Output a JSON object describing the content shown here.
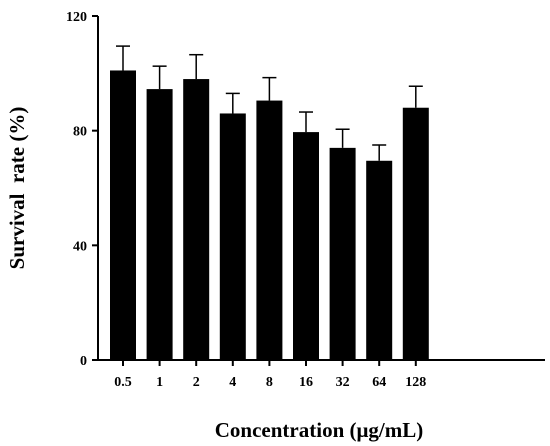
{
  "chart_data": {
    "type": "bar",
    "title": "",
    "xlabel": "Concentration (μg/mL)",
    "ylabel": "Survival  rate (%)",
    "categories": [
      "0.5",
      "1",
      "2",
      "4",
      "8",
      "16",
      "32",
      "64",
      "128"
    ],
    "values": [
      101,
      94.5,
      98,
      86,
      90.5,
      79.5,
      74,
      69.5,
      88
    ],
    "errors": [
      8.5,
      8,
      8.5,
      7,
      8,
      7,
      6.5,
      5.5,
      7.5
    ],
    "ylim": [
      0,
      120
    ],
    "yticks": [
      "0",
      "40",
      "80",
      "120"
    ],
    "grid": false,
    "bar_color": "#000000"
  }
}
